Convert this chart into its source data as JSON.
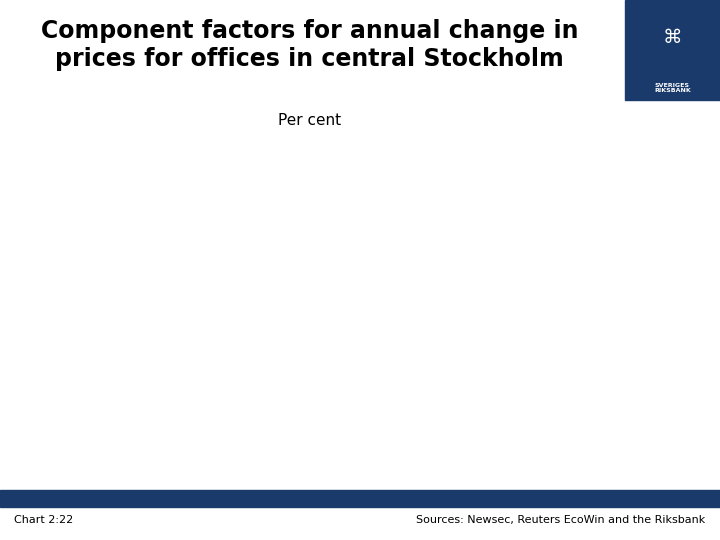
{
  "title_line1": "Component factors for annual change in",
  "title_line2": "prices for offices in central Stockholm",
  "subtitle": "Per cent",
  "footer_left": "Chart 2:22",
  "footer_right": "Sources: Newsec, Reuters EcoWin and the Riksbank",
  "background_color": "#ffffff",
  "title_color": "#000000",
  "subtitle_color": "#000000",
  "footer_color": "#000000",
  "footer_bar_color": "#1a3a6b",
  "logo_bg_color": "#1a3a6b",
  "title_fontsize": 17,
  "subtitle_fontsize": 11,
  "footer_fontsize": 8
}
